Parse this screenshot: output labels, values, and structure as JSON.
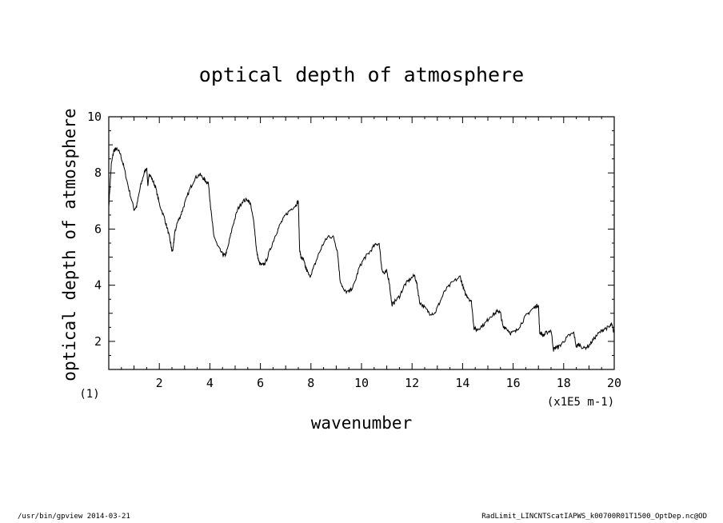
{
  "footer": {
    "left": "/usr/bin/gpview   2014-03-21",
    "right": "RadLimit_LINCNTScatIAPWS_k00700R01T1500_OptDep.nc@OD"
  },
  "chart_data": {
    "type": "line",
    "title": "optical depth of atmosphere",
    "xlabel": "wavenumber",
    "ylabel": "optical depth of atmosphere",
    "x_unit_label": "(x1E5 m-1)",
    "y_unit_label": "(1)",
    "xlim": [
      0,
      20
    ],
    "ylim": [
      1,
      10
    ],
    "x_ticks": [
      "2",
      "4",
      "6",
      "8",
      "10",
      "12",
      "14",
      "16",
      "18",
      "20"
    ],
    "y_ticks": [
      "2",
      "4",
      "6",
      "8",
      "10"
    ],
    "grid": false,
    "legend": "none",
    "line_color": "#000000",
    "series": [
      {
        "x": [
          0.0,
          0.1,
          0.2,
          0.3,
          0.45,
          0.6,
          0.8,
          1.0,
          1.1,
          1.25,
          1.4,
          1.5,
          1.55,
          1.6,
          1.7,
          1.85,
          2.0,
          2.2,
          2.35,
          2.45,
          2.5,
          2.55,
          2.6,
          2.7,
          2.85,
          3.0,
          3.2,
          3.4,
          3.6,
          3.75,
          3.85,
          3.95,
          4.05,
          4.15,
          4.3,
          4.5,
          4.6,
          4.7,
          4.9,
          5.1,
          5.3,
          5.5,
          5.6,
          5.75,
          5.85,
          5.95,
          6.05,
          6.2,
          6.4,
          6.6,
          6.8,
          7.0,
          7.2,
          7.4,
          7.5,
          7.55,
          7.6,
          7.7,
          7.8,
          7.95,
          8.1,
          8.3,
          8.5,
          8.7,
          8.9,
          9.05,
          9.15,
          9.3,
          9.5,
          9.7,
          9.9,
          10.1,
          10.3,
          10.5,
          10.7,
          10.8,
          10.9,
          11.0,
          11.1,
          11.2,
          11.3,
          11.5,
          11.7,
          11.9,
          12.1,
          12.2,
          12.3,
          12.5,
          12.7,
          12.9,
          13.1,
          13.3,
          13.6,
          13.9,
          14.0,
          14.1,
          14.2,
          14.35,
          14.45,
          14.55,
          14.7,
          14.9,
          15.1,
          15.3,
          15.4,
          15.5,
          15.6,
          15.7,
          15.9,
          16.1,
          16.3,
          16.5,
          16.7,
          16.9,
          17.0,
          17.05,
          17.1,
          17.2,
          17.3,
          17.5,
          17.6,
          17.7,
          17.8,
          18.0,
          18.2,
          18.4,
          18.5,
          18.6,
          18.8,
          19.0,
          19.2,
          19.4,
          19.6,
          19.8,
          19.9,
          20.0
        ],
        "y": [
          6.8,
          8.3,
          8.8,
          8.85,
          8.7,
          8.2,
          7.4,
          6.7,
          6.8,
          7.5,
          8.0,
          8.2,
          7.5,
          8.0,
          7.8,
          7.5,
          6.9,
          6.4,
          5.9,
          5.5,
          5.2,
          5.3,
          5.8,
          6.2,
          6.5,
          6.9,
          7.4,
          7.8,
          7.95,
          7.8,
          7.7,
          7.6,
          6.6,
          5.8,
          5.4,
          5.1,
          5.05,
          5.3,
          6.1,
          6.7,
          7.0,
          7.05,
          6.9,
          6.2,
          5.2,
          4.8,
          4.7,
          4.8,
          5.3,
          5.8,
          6.2,
          6.5,
          6.7,
          6.85,
          7.0,
          5.3,
          5.0,
          4.9,
          4.6,
          4.3,
          4.6,
          5.1,
          5.5,
          5.75,
          5.7,
          5.2,
          4.2,
          3.8,
          3.75,
          4.0,
          4.6,
          4.95,
          5.15,
          5.4,
          5.5,
          4.6,
          4.4,
          4.5,
          4.1,
          3.3,
          3.4,
          3.6,
          4.0,
          4.2,
          4.35,
          4.0,
          3.4,
          3.2,
          3.0,
          3.0,
          3.4,
          3.8,
          4.1,
          4.3,
          4.0,
          3.7,
          3.6,
          3.4,
          2.5,
          2.4,
          2.5,
          2.65,
          2.9,
          3.0,
          3.1,
          3.0,
          2.5,
          2.5,
          2.3,
          2.35,
          2.6,
          2.9,
          3.1,
          3.25,
          3.3,
          2.3,
          2.3,
          2.2,
          2.3,
          2.4,
          1.7,
          1.8,
          1.8,
          2.0,
          2.2,
          2.3,
          1.8,
          1.9,
          1.75,
          1.85,
          2.1,
          2.3,
          2.45,
          2.5,
          2.6,
          2.3
        ]
      }
    ]
  }
}
